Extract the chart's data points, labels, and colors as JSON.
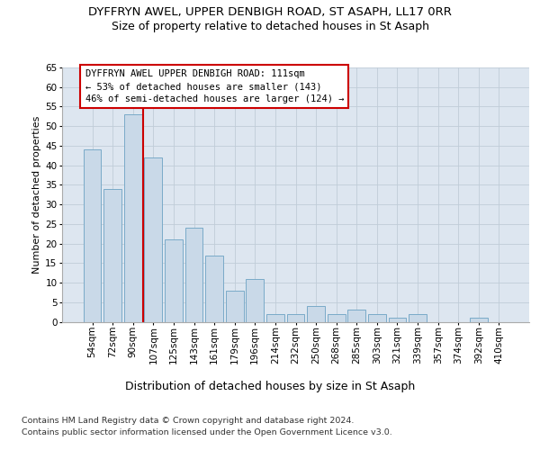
{
  "title": "DYFFRYN AWEL, UPPER DENBIGH ROAD, ST ASAPH, LL17 0RR",
  "subtitle": "Size of property relative to detached houses in St Asaph",
  "xlabel": "Distribution of detached houses by size in St Asaph",
  "ylabel": "Number of detached properties",
  "categories": [
    "54sqm",
    "72sqm",
    "90sqm",
    "107sqm",
    "125sqm",
    "143sqm",
    "161sqm",
    "179sqm",
    "196sqm",
    "214sqm",
    "232sqm",
    "250sqm",
    "268sqm",
    "285sqm",
    "303sqm",
    "321sqm",
    "339sqm",
    "357sqm",
    "374sqm",
    "392sqm",
    "410sqm"
  ],
  "values": [
    44,
    34,
    53,
    42,
    21,
    24,
    17,
    8,
    11,
    2,
    2,
    4,
    2,
    3,
    2,
    1,
    2,
    0,
    0,
    1,
    0
  ],
  "bar_color": "#c9d9e8",
  "bar_edge_color": "#7aaac8",
  "grid_color": "#c0ccd8",
  "background_color": "#dde6f0",
  "vline_color": "#cc0000",
  "annotation_line1": "DYFFRYN AWEL UPPER DENBIGH ROAD: 111sqm",
  "annotation_line2": "← 53% of detached houses are smaller (143)",
  "annotation_line3": "46% of semi-detached houses are larger (124) →",
  "annotation_box_color": "#ffffff",
  "annotation_box_edge_color": "#cc0000",
  "ylim": [
    0,
    65
  ],
  "yticks": [
    0,
    5,
    10,
    15,
    20,
    25,
    30,
    35,
    40,
    45,
    50,
    55,
    60,
    65
  ],
  "footnote1": "Contains HM Land Registry data © Crown copyright and database right 2024.",
  "footnote2": "Contains public sector information licensed under the Open Government Licence v3.0.",
  "title_fontsize": 9.5,
  "subtitle_fontsize": 9,
  "xlabel_fontsize": 9,
  "ylabel_fontsize": 8,
  "tick_fontsize": 7.5,
  "annotation_fontsize": 7.5,
  "footnote_fontsize": 6.8
}
